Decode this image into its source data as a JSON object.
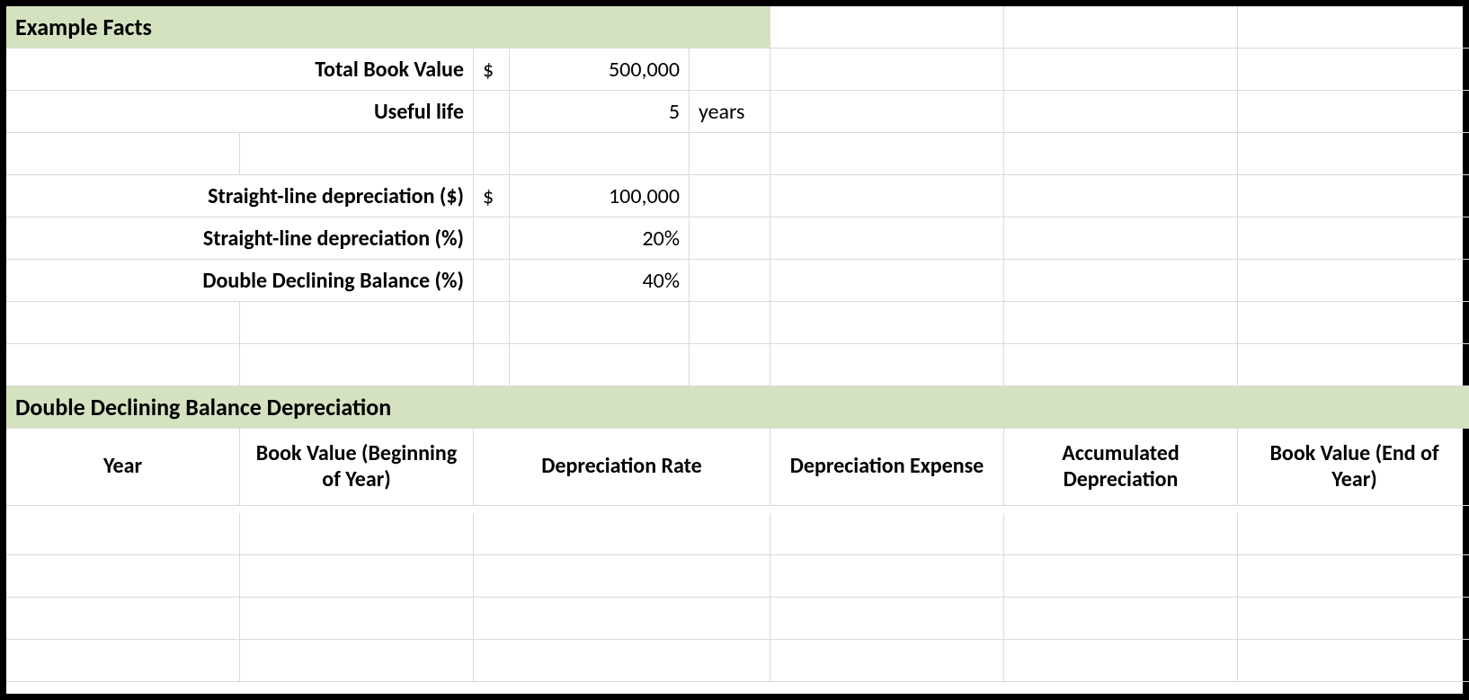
{
  "colors": {
    "header_bg": "#d4e2c0",
    "grid_line": "#d9d9d9",
    "border": "#000000",
    "text": "#000000",
    "background": "#ffffff"
  },
  "facts": {
    "section_title": "Example Facts",
    "total_book_value_label": "Total Book Value",
    "total_book_value_currency": "$",
    "total_book_value_amount": "500,000",
    "useful_life_label": "Useful life",
    "useful_life_value": "5",
    "useful_life_unit": "years",
    "sl_dollar_label": "Straight-line depreciation ($)",
    "sl_dollar_currency": "$",
    "sl_dollar_amount": "100,000",
    "sl_percent_label": "Straight-line depreciation (%)",
    "sl_percent_value": "20%",
    "ddb_percent_label": "Double Declining Balance (%)",
    "ddb_percent_value": "40%"
  },
  "ddb": {
    "section_title": "Double Declining Balance Depreciation",
    "columns": {
      "year": "Year",
      "bv_begin": "Book Value (Beginning of Year)",
      "rate": "Depreciation Rate",
      "expense": "Depreciation Expense",
      "accum": "Accumulated Depreciation",
      "bv_end": "Book Value (End of Year)"
    }
  }
}
